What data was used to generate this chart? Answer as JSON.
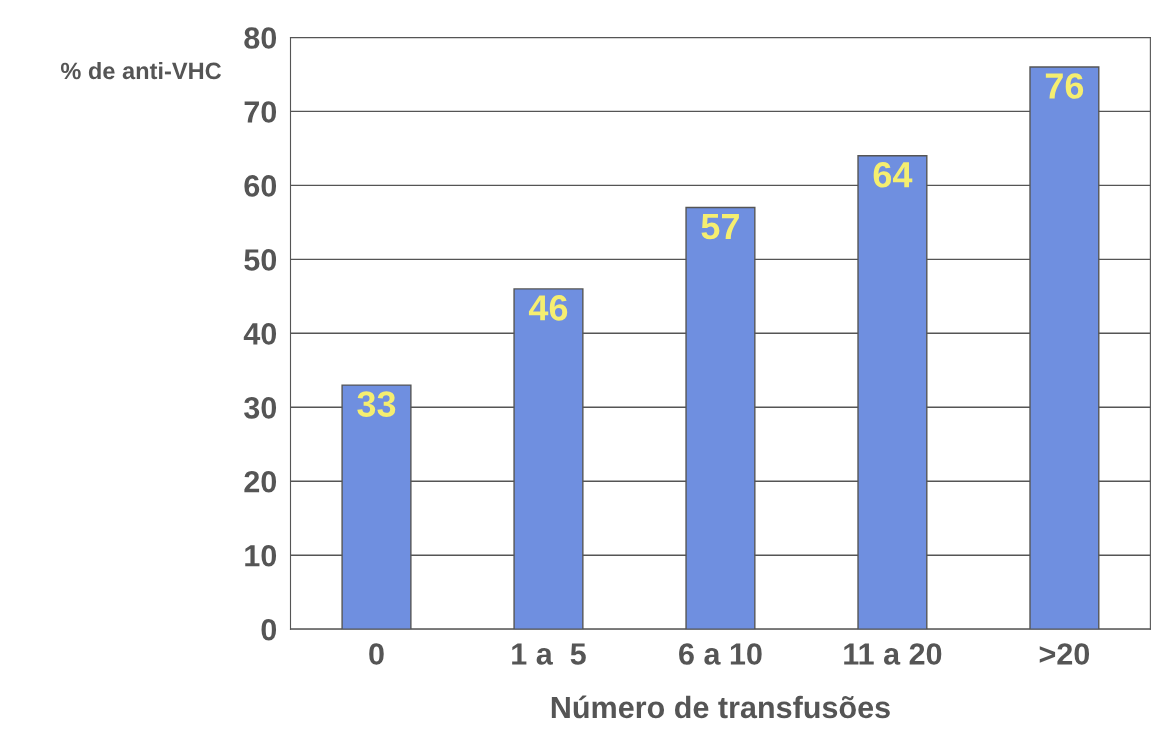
{
  "chart_data": {
    "type": "bar",
    "xlabel": "Número de transfusões",
    "ylabel": "% de anti-VHC",
    "categories": [
      "0",
      "1 a  5",
      "6 a 10",
      "11 a 20",
      ">20"
    ],
    "values": [
      33,
      46,
      57,
      64,
      76
    ],
    "color": "#6f8fe0",
    "ylim": [
      0,
      80
    ],
    "yticks": [
      0,
      10,
      20,
      30,
      40,
      50,
      60,
      70,
      80
    ],
    "grid": "y",
    "data_labels": true,
    "legend": false
  }
}
